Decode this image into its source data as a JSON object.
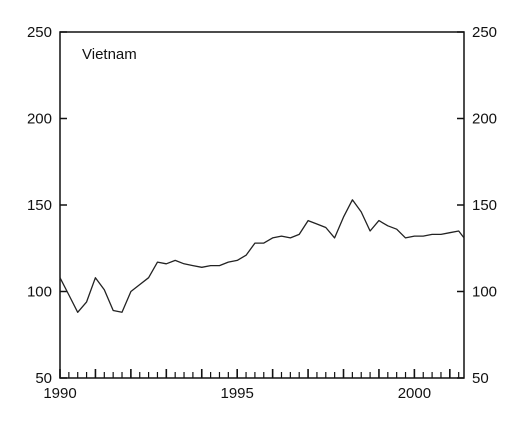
{
  "chart_data": {
    "type": "line",
    "title": "",
    "xlabel": "",
    "ylabel": "",
    "annotations": [
      {
        "text": "Vietnam",
        "position": "top-left"
      }
    ],
    "xlim": [
      1990,
      2001.4
    ],
    "ylim": [
      50,
      250
    ],
    "x_ticks": [
      1990,
      1995,
      2000
    ],
    "y_ticks": [
      50,
      100,
      150,
      200,
      250
    ],
    "grid": false,
    "legend": "none",
    "series": [
      {
        "color": "#222222",
        "x": [
          1990.0,
          1990.25,
          1990.5,
          1990.75,
          1991.0,
          1991.25,
          1991.5,
          1991.75,
          1992.0,
          1992.25,
          1992.5,
          1992.75,
          1993.0,
          1993.25,
          1993.5,
          1993.75,
          1994.0,
          1994.25,
          1994.5,
          1994.75,
          1995.0,
          1995.25,
          1995.5,
          1995.75,
          1996.0,
          1996.25,
          1996.5,
          1996.75,
          1997.0,
          1997.25,
          1997.5,
          1997.75,
          1998.0,
          1998.25,
          1998.5,
          1998.75,
          1999.0,
          1999.25,
          1999.5,
          1999.75,
          2000.0,
          2000.25,
          2000.5,
          2000.75,
          2001.0,
          2001.25,
          2001.4
        ],
        "y": [
          108,
          98,
          88,
          94,
          108,
          101,
          89,
          88,
          100,
          104,
          108,
          117,
          116,
          118,
          116,
          115,
          114,
          115,
          115,
          117,
          118,
          121,
          128,
          128,
          131,
          132,
          131,
          133,
          141,
          139,
          137,
          131,
          143,
          153,
          146,
          135,
          141,
          138,
          136,
          131,
          132,
          132,
          133,
          133,
          134,
          135,
          131
        ]
      }
    ]
  }
}
